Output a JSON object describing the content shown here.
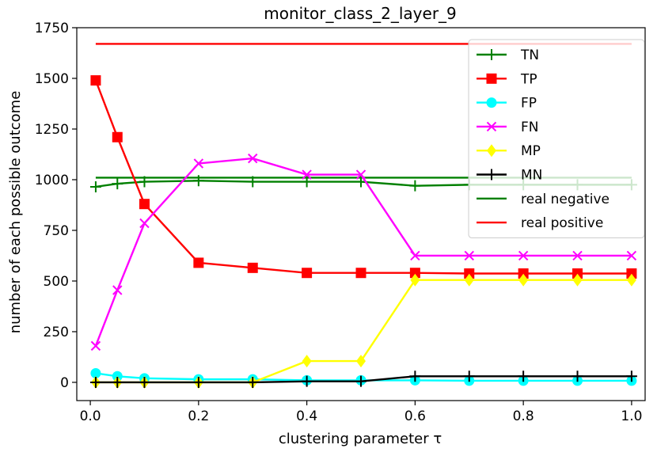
{
  "chart_data": {
    "type": "line",
    "title": "monitor_class_2_layer_9",
    "xlabel": "clustering parameter τ",
    "ylabel": "number of each possible outcome",
    "xlim": [
      -0.025,
      1.025
    ],
    "ylim": [
      -90,
      1750
    ],
    "xticks": [
      0.0,
      0.2,
      0.4,
      0.6,
      0.8,
      1.0
    ],
    "xtick_labels": [
      "0.0",
      "0.2",
      "0.4",
      "0.6",
      "0.8",
      "1.0"
    ],
    "yticks": [
      0,
      250,
      500,
      750,
      1000,
      1250,
      1500,
      1750
    ],
    "ytick_labels": [
      "0",
      "250",
      "500",
      "750",
      "1000",
      "1250",
      "1500",
      "1750"
    ],
    "grid": false,
    "legend_position": "top-right",
    "x": [
      0.01,
      0.05,
      0.1,
      0.2,
      0.3,
      0.4,
      0.5,
      0.6,
      0.7,
      0.8,
      0.9,
      1.0
    ],
    "series": [
      {
        "name": "TN",
        "color": "#008000",
        "marker": "plus",
        "values": [
          965,
          980,
          990,
          995,
          990,
          990,
          990,
          970,
          975,
          975,
          975,
          975
        ]
      },
      {
        "name": "TP",
        "color": "#ff0000",
        "marker": "square",
        "values": [
          1490,
          1210,
          880,
          590,
          565,
          540,
          540,
          540,
          537,
          537,
          537,
          537
        ]
      },
      {
        "name": "FP",
        "color": "#00ffff",
        "marker": "circle",
        "values": [
          45,
          30,
          20,
          15,
          15,
          10,
          10,
          10,
          8,
          8,
          8,
          8
        ]
      },
      {
        "name": "FN",
        "color": "#ff00ff",
        "marker": "x",
        "values": [
          180,
          455,
          785,
          1080,
          1105,
          1025,
          1025,
          625,
          625,
          625,
          625,
          625
        ]
      },
      {
        "name": "MP",
        "color": "#ffff00",
        "marker": "diamond",
        "values": [
          0,
          0,
          0,
          0,
          0,
          105,
          105,
          505,
          505,
          505,
          505,
          505
        ]
      },
      {
        "name": "MN",
        "color": "#000000",
        "marker": "plus",
        "values": [
          0,
          0,
          0,
          0,
          0,
          5,
          5,
          30,
          30,
          30,
          30,
          30
        ]
      }
    ],
    "reference_lines": [
      {
        "name": "real negative",
        "color": "#008000",
        "x": [
          0.01,
          1.0
        ],
        "values": [
          1010,
          1010
        ]
      },
      {
        "name": "real positive",
        "color": "#ff0000",
        "x": [
          0.01,
          1.0
        ],
        "values": [
          1670,
          1670
        ]
      }
    ]
  }
}
